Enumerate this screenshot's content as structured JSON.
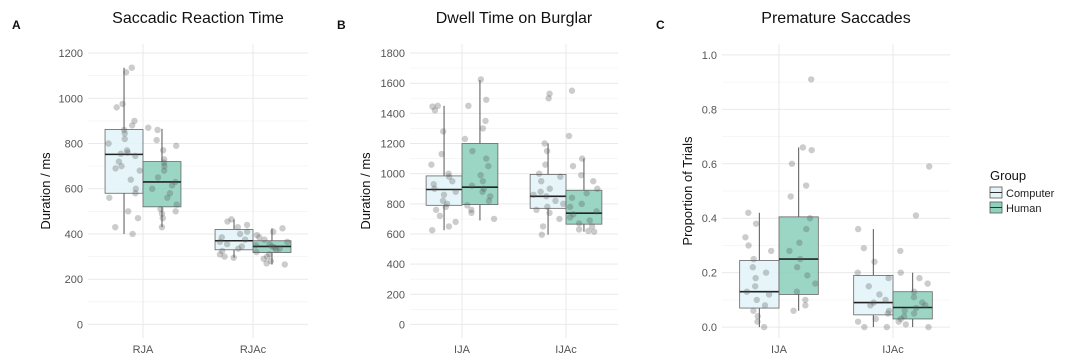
{
  "legend": {
    "title": "Group",
    "groups": [
      {
        "name": "Computer",
        "color": "#e3f4f8"
      },
      {
        "name": "Human",
        "color": "#8fd1bd"
      }
    ]
  },
  "chart_data": [
    {
      "type": "box",
      "letter": "A",
      "title": "Saccadic Reaction Time",
      "xlabel": "",
      "ylabel": "Duration / ms",
      "ylim": [
        -60,
        1240
      ],
      "yticks": [
        0,
        200,
        400,
        600,
        800,
        1000,
        1200
      ],
      "categories": [
        "RJA",
        "RJAc"
      ],
      "boxes": [
        {
          "category": "RJA",
          "group": "Computer",
          "min": 400,
          "q1": 580,
          "median": 752,
          "q3": 862,
          "max": 1135,
          "points": [
            1135,
            1115,
            975,
            960,
            900,
            880,
            860,
            845,
            820,
            800,
            770,
            760,
            755,
            745,
            720,
            700,
            690,
            680,
            640,
            600,
            580,
            560,
            500,
            470,
            430,
            400
          ]
        },
        {
          "category": "RJA",
          "group": "Human",
          "min": 430,
          "q1": 520,
          "median": 630,
          "q3": 720,
          "max": 865,
          "points": [
            870,
            860,
            815,
            790,
            770,
            730,
            715,
            700,
            680,
            650,
            630,
            615,
            600,
            580,
            560,
            530,
            510,
            500,
            490,
            470,
            430
          ]
        },
        {
          "category": "RJAc",
          "group": "Computer",
          "min": 295,
          "q1": 330,
          "median": 370,
          "q3": 420,
          "max": 465,
          "points": [
            465,
            455,
            440,
            430,
            410,
            400,
            385,
            375,
            365,
            355,
            345,
            335,
            325,
            310,
            300,
            295
          ]
        },
        {
          "category": "RJAc",
          "group": "Human",
          "min": 265,
          "q1": 318,
          "median": 345,
          "q3": 370,
          "max": 425,
          "points": [
            425,
            410,
            395,
            385,
            375,
            365,
            355,
            350,
            345,
            340,
            335,
            330,
            320,
            310,
            300,
            290,
            280,
            270,
            265
          ]
        }
      ]
    },
    {
      "type": "box",
      "letter": "B",
      "title": "Dwell Time on Burglar",
      "xlabel": "",
      "ylabel": "Duration / ms",
      "ylim": [
        -90,
        1860
      ],
      "yticks": [
        0,
        200,
        400,
        600,
        800,
        1000,
        1200,
        1400,
        1600,
        1800
      ],
      "categories": [
        "IJA",
        "IJAc"
      ],
      "boxes": [
        {
          "category": "IJA",
          "group": "Computer",
          "min": 625,
          "q1": 790,
          "median": 895,
          "q3": 985,
          "max": 1450,
          "points": [
            1450,
            1445,
            1420,
            1280,
            1130,
            1060,
            1000,
            980,
            950,
            930,
            900,
            880,
            860,
            820,
            800,
            780,
            760,
            720,
            680,
            650,
            625
          ]
        },
        {
          "category": "IJA",
          "group": "Human",
          "min": 690,
          "q1": 795,
          "median": 910,
          "q3": 1200,
          "max": 1620,
          "points": [
            1625,
            1490,
            1450,
            1350,
            1300,
            1230,
            1150,
            1100,
            1050,
            990,
            950,
            920,
            900,
            880,
            850,
            820,
            790,
            760,
            740,
            700
          ]
        },
        {
          "category": "IJAc",
          "group": "Computer",
          "min": 595,
          "q1": 770,
          "median": 850,
          "q3": 995,
          "max": 1200,
          "points": [
            1530,
            1500,
            1200,
            1150,
            1060,
            1000,
            980,
            950,
            900,
            880,
            860,
            850,
            820,
            800,
            780,
            760,
            740,
            700,
            650,
            595
          ]
        },
        {
          "category": "IJAc",
          "group": "Human",
          "min": 615,
          "q1": 665,
          "median": 738,
          "q3": 890,
          "max": 1100,
          "points": [
            1550,
            1250,
            1100,
            1050,
            990,
            950,
            900,
            870,
            840,
            800,
            780,
            750,
            730,
            710,
            690,
            670,
            650,
            630,
            620,
            615
          ]
        }
      ]
    },
    {
      "type": "box",
      "letter": "C",
      "title": "Premature Saccades",
      "xlabel": "",
      "ylabel": "Proportion of Trials",
      "ylim": [
        -0.04,
        1.04
      ],
      "yticks": [
        0.0,
        0.2,
        0.4,
        0.6,
        0.8,
        1.0
      ],
      "tick_decimals": 1,
      "categories": [
        "IJA",
        "IJAc"
      ],
      "boxes": [
        {
          "category": "IJA",
          "group": "Computer",
          "min": 0.0,
          "q1": 0.07,
          "median": 0.13,
          "q3": 0.245,
          "max": 0.42,
          "points": [
            0.42,
            0.38,
            0.33,
            0.3,
            0.28,
            0.25,
            0.22,
            0.2,
            0.18,
            0.15,
            0.13,
            0.12,
            0.1,
            0.08,
            0.06,
            0.04,
            0.02,
            0.0
          ]
        },
        {
          "category": "IJA",
          "group": "Human",
          "min": 0.06,
          "q1": 0.12,
          "median": 0.25,
          "q3": 0.405,
          "max": 0.66,
          "points": [
            0.91,
            0.66,
            0.65,
            0.6,
            0.52,
            0.48,
            0.4,
            0.36,
            0.31,
            0.28,
            0.25,
            0.22,
            0.19,
            0.16,
            0.13,
            0.1,
            0.08,
            0.06
          ]
        },
        {
          "category": "IJAc",
          "group": "Computer",
          "min": 0.0,
          "q1": 0.045,
          "median": 0.09,
          "q3": 0.19,
          "max": 0.36,
          "points": [
            0.36,
            0.29,
            0.24,
            0.2,
            0.18,
            0.15,
            0.12,
            0.1,
            0.09,
            0.08,
            0.06,
            0.05,
            0.03,
            0.02,
            0.0,
            0.0
          ]
        },
        {
          "category": "IJAc",
          "group": "Human",
          "min": 0.0,
          "q1": 0.03,
          "median": 0.072,
          "q3": 0.13,
          "max": 0.2,
          "points": [
            0.59,
            0.41,
            0.28,
            0.2,
            0.18,
            0.16,
            0.13,
            0.11,
            0.09,
            0.08,
            0.07,
            0.06,
            0.05,
            0.04,
            0.03,
            0.02,
            0.01,
            0.0
          ]
        }
      ]
    }
  ]
}
